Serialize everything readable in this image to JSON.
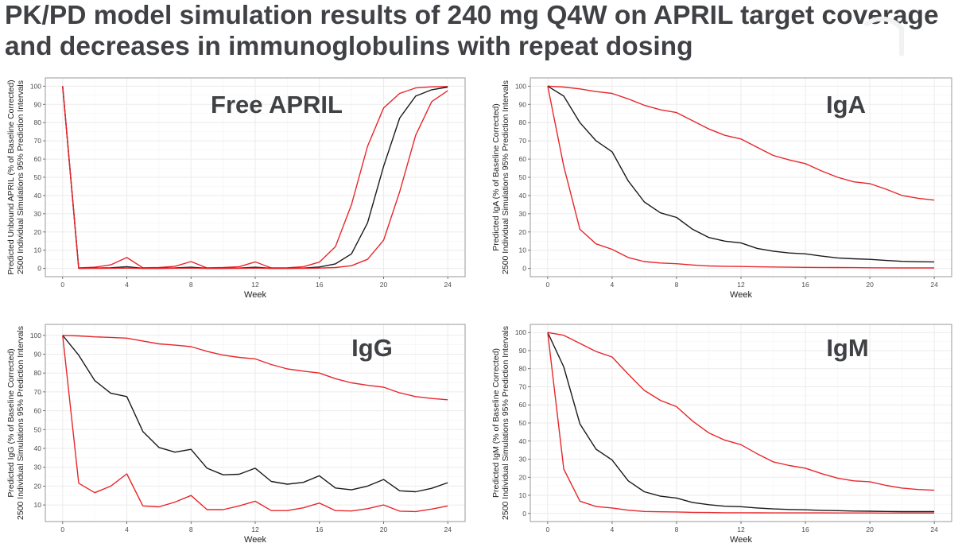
{
  "slide": {
    "title_line1": "PK/PD model simulation results of 240 mg Q4W on APRIL target coverage",
    "title_line2": "and decreases in immunoglobulins with repeat dosing"
  },
  "colors": {
    "median": "#1a1a1a",
    "interval": "#e8262b",
    "grid": "#ebebeb",
    "panel_border": "#999999",
    "title": "#3f4144"
  },
  "chart_data": [
    {
      "type": "line",
      "id": "april",
      "title": "Free APRIL",
      "ylabel_line1": "Predicted Unbound APRIL (% of Baseline Corrected)",
      "ylabel_line2": "2500 Individual Simulations 95% Prediction Intervals",
      "xlabel": "Week",
      "xlim": [
        0,
        24
      ],
      "ylim": [
        0,
        100
      ],
      "xticks": [
        0,
        4,
        8,
        12,
        16,
        20,
        24
      ],
      "yticks": [
        0,
        10,
        20,
        30,
        40,
        50,
        60,
        70,
        80,
        90,
        100
      ],
      "grid": true,
      "x": [
        0,
        1,
        2,
        3,
        4,
        5,
        6,
        7,
        8,
        9,
        10,
        11,
        12,
        13,
        14,
        15,
        16,
        17,
        18,
        19,
        20,
        21,
        22,
        23,
        24
      ],
      "series": [
        {
          "role": "upper",
          "values": [
            100,
            0.3,
            0.7,
            2,
            6,
            0.4,
            0.5,
            1.2,
            3.8,
            0.3,
            0.5,
            1,
            3.6,
            0.3,
            0.4,
            1,
            3.5,
            12,
            35,
            67,
            88,
            96,
            99,
            99.6,
            99.8
          ]
        },
        {
          "role": "median",
          "values": [
            100,
            0.1,
            0.2,
            0.4,
            1,
            0.1,
            0.1,
            0.3,
            0.7,
            0.1,
            0.1,
            0.2,
            0.7,
            0.1,
            0.1,
            0.2,
            0.8,
            2.5,
            8,
            25,
            56,
            82.5,
            94.5,
            98,
            99.5
          ]
        },
        {
          "role": "lower",
          "values": [
            100,
            0,
            0.05,
            0.1,
            0.2,
            0,
            0,
            0.1,
            0.2,
            0,
            0,
            0.05,
            0.2,
            0,
            0,
            0.05,
            0.2,
            0.5,
            1.5,
            5,
            15.5,
            42,
            73,
            91.5,
            97.5
          ]
        }
      ]
    },
    {
      "type": "line",
      "id": "iga",
      "title": "IgA",
      "ylabel_line1": "Predicted IgA (% of Baseline Corrected)",
      "ylabel_line2": "2500 Individual Simulations 95% Prediction Intervals",
      "xlabel": "Week",
      "xlim": [
        0,
        24
      ],
      "ylim": [
        0,
        100
      ],
      "xticks": [
        0,
        4,
        8,
        12,
        16,
        20,
        24
      ],
      "yticks": [
        0,
        10,
        20,
        30,
        40,
        50,
        60,
        70,
        80,
        90,
        100
      ],
      "grid": true,
      "x": [
        0,
        1,
        2,
        3,
        4,
        5,
        6,
        7,
        8,
        9,
        10,
        11,
        12,
        13,
        14,
        15,
        16,
        17,
        18,
        19,
        20,
        21,
        22,
        23,
        24
      ],
      "series": [
        {
          "role": "upper",
          "values": [
            100,
            99.5,
            98.5,
            97,
            96,
            93,
            89.5,
            87,
            85.5,
            81,
            76.5,
            73,
            71,
            66.5,
            62,
            59.5,
            57.5,
            53.5,
            50,
            47.5,
            46.5,
            43.5,
            40,
            38.5,
            37.5
          ]
        },
        {
          "role": "median",
          "values": [
            100,
            94.5,
            80,
            70,
            64,
            48,
            36.5,
            30.5,
            28,
            21.5,
            17,
            15,
            14,
            11,
            9.5,
            8.5,
            8,
            6.8,
            5.8,
            5.3,
            5,
            4.4,
            3.9,
            3.7,
            3.6
          ]
        },
        {
          "role": "lower",
          "values": [
            100,
            56,
            21.5,
            13.5,
            10.5,
            6,
            3.8,
            3,
            2.6,
            1.9,
            1.4,
            1.2,
            1.1,
            0.9,
            0.8,
            0.7,
            0.6,
            0.55,
            0.5,
            0.45,
            0.4,
            0.35,
            0.3,
            0.3,
            0.3
          ]
        }
      ]
    },
    {
      "type": "line",
      "id": "igg",
      "title": "IgG",
      "ylabel_line1": "Predicted IgG (% of Baseline Corrected)",
      "ylabel_line2": "2500 Individual Simulations 95% Prediction Intervals",
      "xlabel": "Week",
      "xlim": [
        0,
        24
      ],
      "ylim": [
        5.5,
        101.5
      ],
      "xticks": [
        0,
        4,
        8,
        12,
        16,
        20,
        24
      ],
      "yticks": [
        10,
        20,
        30,
        40,
        50,
        60,
        70,
        80,
        90,
        100
      ],
      "grid": true,
      "x": [
        0,
        1,
        2,
        3,
        4,
        5,
        6,
        7,
        8,
        9,
        10,
        11,
        12,
        13,
        14,
        15,
        16,
        17,
        18,
        19,
        20,
        21,
        22,
        23,
        24
      ],
      "series": [
        {
          "role": "upper",
          "values": [
            100,
            99.7,
            99.2,
            98.9,
            98.5,
            97,
            95.5,
            94.8,
            94,
            91.5,
            89.5,
            88.3,
            87.5,
            84.5,
            82.2,
            81,
            80,
            77,
            74.8,
            73.5,
            72.5,
            69.5,
            67.5,
            66.5,
            65.8
          ]
        },
        {
          "role": "median",
          "values": [
            100,
            89.5,
            76,
            69.3,
            67.5,
            49,
            40.5,
            38,
            39.5,
            29.5,
            26,
            26.3,
            29.5,
            22.5,
            21,
            22,
            25.5,
            19,
            18,
            20,
            23.5,
            17.5,
            17,
            18.8,
            21.8
          ]
        },
        {
          "role": "lower",
          "values": [
            100,
            21.5,
            16.5,
            20,
            26.5,
            9.5,
            9,
            11.5,
            15,
            7.5,
            7.5,
            9.5,
            12,
            7,
            7,
            8.5,
            11,
            7,
            6.8,
            8,
            10,
            6.7,
            6.5,
            7.8,
            9.5
          ]
        }
      ]
    },
    {
      "type": "line",
      "id": "igm",
      "title": "IgM",
      "ylabel_line1": "Predicted IgM (% of Baseline Corrected)",
      "ylabel_line2": "2500 Individual Simulations 95% Prediction Intervals",
      "xlabel": "Week",
      "xlim": [
        0,
        24
      ],
      "ylim": [
        0,
        100
      ],
      "xticks": [
        0,
        4,
        8,
        12,
        16,
        20,
        24
      ],
      "yticks": [
        0,
        10,
        20,
        30,
        40,
        50,
        60,
        70,
        80,
        90,
        100
      ],
      "grid": true,
      "x": [
        0,
        1,
        2,
        3,
        4,
        5,
        6,
        7,
        8,
        9,
        10,
        11,
        12,
        13,
        14,
        15,
        16,
        17,
        18,
        19,
        20,
        21,
        22,
        23,
        24
      ],
      "series": [
        {
          "role": "upper",
          "values": [
            100,
            98.5,
            94,
            89.5,
            86.5,
            77,
            68,
            62.5,
            59,
            51,
            44.5,
            40.5,
            38,
            33,
            28.5,
            26.5,
            25,
            22,
            19.5,
            18,
            17.5,
            15.5,
            14,
            13.2,
            12.8
          ]
        },
        {
          "role": "median",
          "values": [
            100,
            81,
            49.5,
            35.5,
            29.5,
            18,
            12,
            9.5,
            8.5,
            6,
            4.8,
            4,
            3.7,
            3,
            2.5,
            2.2,
            2,
            1.7,
            1.5,
            1.3,
            1.2,
            1.1,
            1,
            1,
            1
          ]
        },
        {
          "role": "lower",
          "values": [
            100,
            24.5,
            6.8,
            3.8,
            3,
            1.8,
            1.1,
            0.9,
            0.8,
            0.6,
            0.5,
            0.4,
            0.4,
            0.35,
            0.3,
            0.3,
            0.3,
            0.3,
            0.25,
            0.25,
            0.25,
            0.2,
            0.2,
            0.2,
            0.2
          ]
        }
      ]
    }
  ]
}
